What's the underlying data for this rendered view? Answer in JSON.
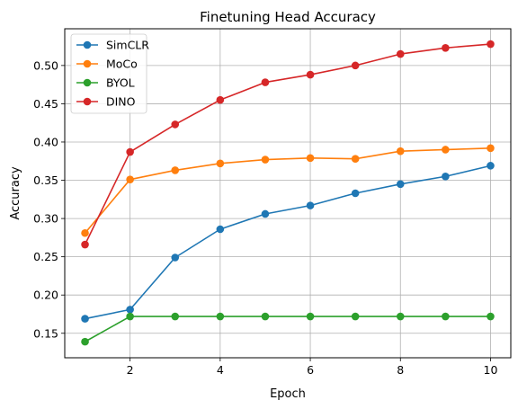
{
  "chart_data": {
    "type": "line",
    "title": "Finetuning Head Accuracy",
    "xlabel": "Epoch",
    "ylabel": "Accuracy",
    "x": [
      1,
      2,
      3,
      4,
      5,
      6,
      7,
      8,
      9,
      10
    ],
    "xlim": [
      0.55,
      10.45
    ],
    "ylim": [
      0.118,
      0.548
    ],
    "xticks": [
      2,
      4,
      6,
      8,
      10
    ],
    "yticks": [
      0.15,
      0.2,
      0.25,
      0.3,
      0.35,
      0.4,
      0.45,
      0.5
    ],
    "grid": true,
    "legend_position": "top-left",
    "series": [
      {
        "name": "SimCLR",
        "color": "#1f77b4",
        "marker": "circle",
        "values": [
          0.169,
          0.181,
          0.249,
          0.286,
          0.306,
          0.317,
          0.333,
          0.345,
          0.355,
          0.369
        ]
      },
      {
        "name": "MoCo",
        "color": "#ff7f0e",
        "marker": "circle",
        "values": [
          0.281,
          0.351,
          0.363,
          0.372,
          0.377,
          0.379,
          0.378,
          0.388,
          0.39,
          0.392
        ]
      },
      {
        "name": "BYOL",
        "color": "#2ca02c",
        "marker": "circle",
        "values": [
          0.139,
          0.172,
          0.172,
          0.172,
          0.172,
          0.172,
          0.172,
          0.172,
          0.172,
          0.172
        ]
      },
      {
        "name": "DINO",
        "color": "#d62728",
        "marker": "circle",
        "values": [
          0.266,
          0.387,
          0.423,
          0.455,
          0.478,
          0.488,
          0.5,
          0.515,
          0.523,
          0.528
        ]
      }
    ]
  }
}
